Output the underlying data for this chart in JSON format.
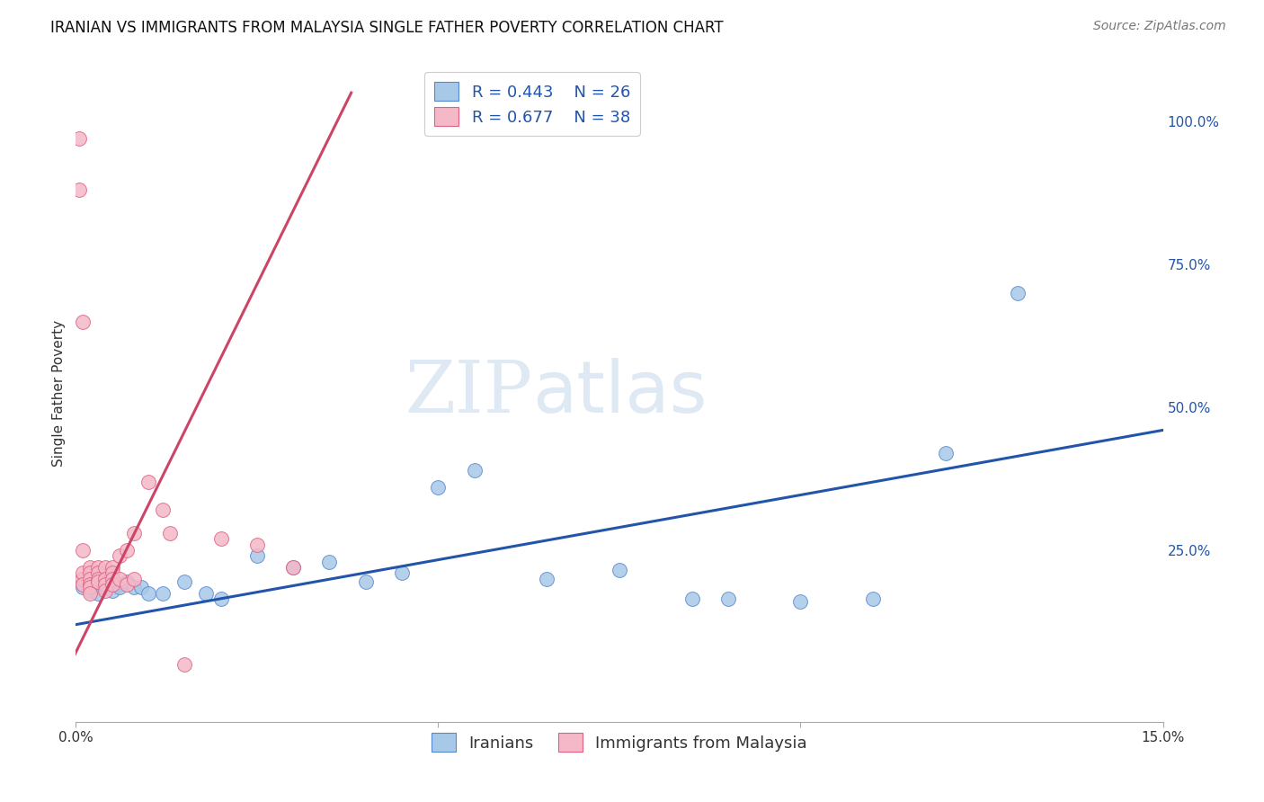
{
  "title": "IRANIAN VS IMMIGRANTS FROM MALAYSIA SINGLE FATHER POVERTY CORRELATION CHART",
  "source": "Source: ZipAtlas.com",
  "ylabel": "Single Father Poverty",
  "xlim": [
    0,
    0.15
  ],
  "ylim": [
    -0.05,
    1.1
  ],
  "yticks_right": [
    0.0,
    0.25,
    0.5,
    0.75,
    1.0
  ],
  "ytick_labels_right": [
    "",
    "25.0%",
    "50.0%",
    "75.0%",
    "100.0%"
  ],
  "legend_label1": "Iranians",
  "legend_label2": "Immigrants from Malaysia",
  "color_blue": "#a8c8e8",
  "color_pink": "#f4b8c8",
  "color_blue_dark": "#5588cc",
  "color_pink_dark": "#e06080",
  "color_blue_line": "#2255aa",
  "color_pink_line": "#cc4466",
  "color_legend_text": "#2255aa",
  "watermark_zip": "ZIP",
  "watermark_atlas": "atlas",
  "blue_scatter_x": [
    0.001,
    0.001,
    0.002,
    0.002,
    0.003,
    0.003,
    0.003,
    0.004,
    0.004,
    0.005,
    0.005,
    0.006,
    0.006,
    0.007,
    0.008,
    0.009,
    0.01,
    0.012,
    0.015,
    0.018,
    0.02,
    0.025,
    0.03,
    0.035,
    0.04,
    0.045,
    0.05,
    0.055,
    0.065,
    0.075,
    0.085,
    0.09,
    0.1,
    0.11,
    0.12,
    0.13
  ],
  "blue_scatter_y": [
    0.2,
    0.185,
    0.195,
    0.18,
    0.2,
    0.185,
    0.175,
    0.19,
    0.185,
    0.195,
    0.18,
    0.19,
    0.185,
    0.195,
    0.185,
    0.185,
    0.175,
    0.175,
    0.195,
    0.175,
    0.165,
    0.24,
    0.22,
    0.23,
    0.195,
    0.21,
    0.36,
    0.39,
    0.2,
    0.215,
    0.165,
    0.165,
    0.16,
    0.165,
    0.42,
    0.7
  ],
  "pink_scatter_x": [
    0.0005,
    0.0005,
    0.0008,
    0.001,
    0.001,
    0.001,
    0.001,
    0.002,
    0.002,
    0.002,
    0.002,
    0.002,
    0.002,
    0.003,
    0.003,
    0.003,
    0.003,
    0.004,
    0.004,
    0.004,
    0.004,
    0.005,
    0.005,
    0.005,
    0.005,
    0.006,
    0.006,
    0.007,
    0.007,
    0.008,
    0.008,
    0.01,
    0.012,
    0.013,
    0.015,
    0.02,
    0.025,
    0.03
  ],
  "pink_scatter_y": [
    0.97,
    0.88,
    0.2,
    0.65,
    0.25,
    0.21,
    0.19,
    0.22,
    0.21,
    0.2,
    0.19,
    0.185,
    0.175,
    0.22,
    0.21,
    0.2,
    0.195,
    0.22,
    0.2,
    0.19,
    0.18,
    0.22,
    0.21,
    0.2,
    0.19,
    0.24,
    0.2,
    0.25,
    0.19,
    0.28,
    0.2,
    0.37,
    0.32,
    0.28,
    0.05,
    0.27,
    0.26,
    0.22
  ],
  "blue_line_x": [
    0.0,
    0.15
  ],
  "blue_line_y": [
    0.12,
    0.46
  ],
  "pink_line_x": [
    -0.002,
    0.038
  ],
  "pink_line_y": [
    0.02,
    1.05
  ],
  "title_fontsize": 12,
  "source_fontsize": 10,
  "axis_label_fontsize": 11,
  "tick_fontsize": 11,
  "legend_fontsize": 13,
  "background_color": "#ffffff",
  "grid_color": "#cccccc"
}
